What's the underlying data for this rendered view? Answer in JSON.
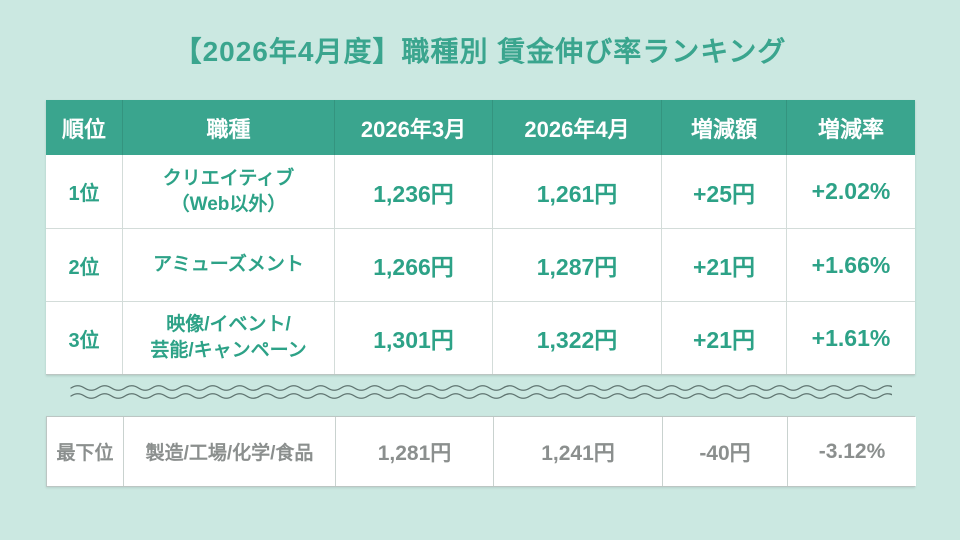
{
  "title": "【2026年4月度】職種別 賃金伸び率ランキング",
  "colors": {
    "background": "#cbe8e1",
    "accent": "#3aa58e",
    "text-teal": "#2da287",
    "gray": "#8b8f8e",
    "wave": "#5f7470"
  },
  "table": {
    "headers": [
      "順位",
      "職種",
      "2026年3月",
      "2026年4月",
      "増減額",
      "増減率"
    ],
    "rows": [
      {
        "rank": "1位",
        "job_line1": "クリエイティブ",
        "job_line2": "（Web以外）",
        "march": "1,236円",
        "april": "1,261円",
        "diff": "+25円",
        "rate": "+2.02%"
      },
      {
        "rank": "2位",
        "job_line1": "アミューズメント",
        "job_line2": "",
        "march": "1,266円",
        "april": "1,287円",
        "diff": "+21円",
        "rate": "+1.66%"
      },
      {
        "rank": "3位",
        "job_line1": "映像/イベント/",
        "job_line2": "芸能/キャンペーン",
        "march": "1,301円",
        "april": "1,322円",
        "diff": "+21円",
        "rate": "+1.61%"
      }
    ]
  },
  "bottom": {
    "rank": "最下位",
    "job": "製造/工場/化学/食品",
    "march": "1,281円",
    "april": "1,241円",
    "diff": "-40円",
    "rate": "-3.12%"
  },
  "chart_data": {
    "type": "table",
    "title": "【2026年4月度】職種別 賃金伸び率ランキング",
    "columns": [
      "順位",
      "職種",
      "2026年3月",
      "2026年4月",
      "増減額",
      "増減率"
    ],
    "rows": [
      [
        "1位",
        "クリエイティブ（Web以外）",
        1236,
        1261,
        25,
        2.02
      ],
      [
        "2位",
        "アミューズメント",
        1266,
        1287,
        21,
        1.66
      ],
      [
        "3位",
        "映像/イベント/芸能/キャンペーン",
        1301,
        1322,
        21,
        1.61
      ],
      [
        "最下位",
        "製造/工場/化学/食品",
        1281,
        1241,
        -40,
        -3.12
      ]
    ],
    "units": {
      "wage": "円",
      "change": "円",
      "rate": "%"
    }
  }
}
